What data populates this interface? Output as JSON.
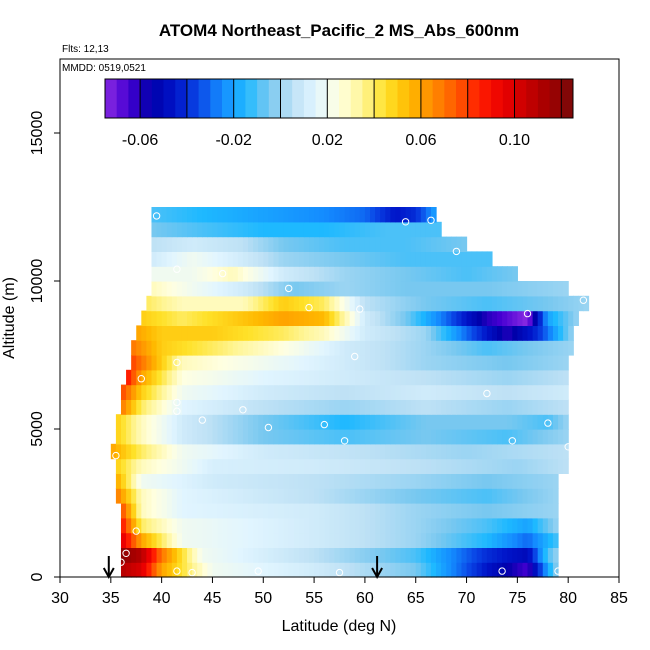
{
  "chart_data": {
    "type": "heatmap",
    "title": "ATOM4 Northeast_Pacific_2 MS_Abs_600nm",
    "subtitle_lines": [
      "Flts: 12,13",
      "MMDD: 0519,0521"
    ],
    "xlabel": "Latitude (deg N)",
    "ylabel": "Altitude (m)",
    "xlim": [
      30,
      85
    ],
    "ylim": [
      0,
      17500
    ],
    "x_ticks": [
      "30",
      "35",
      "40",
      "45",
      "50",
      "55",
      "60",
      "65",
      "70",
      "75",
      "80",
      "85"
    ],
    "y_ticks": [
      "0",
      "5000",
      "10000",
      "15000"
    ],
    "colorbar": {
      "range": [
        -0.075,
        0.125
      ],
      "tick_values": [
        -0.06,
        -0.02,
        0.02,
        0.06,
        0.1
      ],
      "tick_labels": [
        "-0.06",
        "-0.02",
        "0.02",
        "0.06",
        "0.10"
      ],
      "placement": "top-inside"
    },
    "altitude_layers": [
      {
        "alt": 250,
        "lat": [
          36,
          79
        ],
        "v": [
          [
            36,
            0.11
          ],
          [
            38,
            0.1
          ],
          [
            40,
            0.06
          ],
          [
            45,
            0.02
          ],
          [
            55,
            0.01
          ],
          [
            65,
            -0.005
          ],
          [
            72,
            -0.045
          ],
          [
            76,
            -0.065
          ],
          [
            78,
            -0.02
          ],
          [
            79,
            0.0
          ]
        ]
      },
      {
        "alt": 750,
        "lat": [
          36,
          79
        ],
        "v": [
          [
            36,
            0.12
          ],
          [
            38,
            0.11
          ],
          [
            40,
            0.07
          ],
          [
            44,
            0.02
          ],
          [
            55,
            0.005
          ],
          [
            65,
            -0.01
          ],
          [
            72,
            -0.04
          ],
          [
            76,
            -0.05
          ],
          [
            78,
            -0.01
          ],
          [
            79,
            0.0
          ]
        ]
      },
      {
        "alt": 1250,
        "lat": [
          36,
          79
        ],
        "v": [
          [
            36,
            0.1
          ],
          [
            38,
            0.06
          ],
          [
            42,
            0.02
          ],
          [
            55,
            0.01
          ],
          [
            65,
            0.0
          ],
          [
            72,
            -0.015
          ],
          [
            76,
            -0.03
          ],
          [
            79,
            -0.01
          ]
        ]
      },
      {
        "alt": 1750,
        "lat": [
          36,
          79
        ],
        "v": [
          [
            36,
            0.09
          ],
          [
            38,
            0.04
          ],
          [
            42,
            0.02
          ],
          [
            55,
            0.01
          ],
          [
            65,
            0.0
          ],
          [
            72,
            -0.01
          ],
          [
            76,
            -0.02
          ],
          [
            79,
            0.0
          ]
        ]
      },
      {
        "alt": 2250,
        "lat": [
          36,
          79
        ],
        "v": [
          [
            36,
            0.08
          ],
          [
            38,
            0.03
          ],
          [
            42,
            0.015
          ],
          [
            55,
            0.01
          ],
          [
            65,
            0.0
          ],
          [
            72,
            -0.005
          ],
          [
            79,
            0.0
          ]
        ]
      },
      {
        "alt": 2750,
        "lat": [
          35.5,
          79
        ],
        "v": [
          [
            35.5,
            0.07
          ],
          [
            38,
            0.03
          ],
          [
            42,
            0.015
          ],
          [
            55,
            0.005
          ],
          [
            65,
            -0.005
          ],
          [
            72,
            -0.01
          ],
          [
            79,
            0.0
          ]
        ]
      },
      {
        "alt": 3250,
        "lat": [
          35.5,
          79
        ],
        "v": [
          [
            35.5,
            0.06
          ],
          [
            38,
            0.02
          ],
          [
            45,
            0.01
          ],
          [
            55,
            0.005
          ],
          [
            65,
            0.0
          ],
          [
            72,
            -0.005
          ],
          [
            79,
            0.0
          ]
        ]
      },
      {
        "alt": 3750,
        "lat": [
          35.5,
          80
        ],
        "v": [
          [
            35.5,
            0.05
          ],
          [
            38,
            0.03
          ],
          [
            45,
            0.012
          ],
          [
            55,
            0.01
          ],
          [
            65,
            0.005
          ],
          [
            75,
            0.0
          ],
          [
            80,
            0.005
          ]
        ]
      },
      {
        "alt": 4250,
        "lat": [
          35,
          80
        ],
        "v": [
          [
            35,
            0.06
          ],
          [
            38,
            0.04
          ],
          [
            42,
            0.02
          ],
          [
            50,
            0.01
          ],
          [
            60,
            0.005
          ],
          [
            70,
            0.0
          ],
          [
            80,
            0.005
          ]
        ]
      },
      {
        "alt": 4750,
        "lat": [
          35.5,
          80
        ],
        "v": [
          [
            35.5,
            0.05
          ],
          [
            38,
            0.03
          ],
          [
            42,
            0.01
          ],
          [
            50,
            -0.005
          ],
          [
            58,
            -0.01
          ],
          [
            66,
            -0.005
          ],
          [
            74,
            -0.01
          ],
          [
            80,
            0.0
          ]
        ]
      },
      {
        "alt": 5250,
        "lat": [
          35.5,
          80
        ],
        "v": [
          [
            35.5,
            0.05
          ],
          [
            38,
            0.03
          ],
          [
            42,
            0.01
          ],
          [
            50,
            -0.005
          ],
          [
            58,
            -0.015
          ],
          [
            66,
            -0.005
          ],
          [
            74,
            -0.005
          ],
          [
            78,
            -0.01
          ],
          [
            80,
            0.0
          ]
        ]
      },
      {
        "alt": 5750,
        "lat": [
          36,
          80
        ],
        "v": [
          [
            36,
            0.07
          ],
          [
            38,
            0.04
          ],
          [
            42,
            0.015
          ],
          [
            50,
            0.005
          ],
          [
            58,
            0.0
          ],
          [
            66,
            0.005
          ],
          [
            74,
            0.0
          ],
          [
            80,
            0.005
          ]
        ]
      },
      {
        "alt": 6250,
        "lat": [
          36,
          80
        ],
        "v": [
          [
            36,
            0.08
          ],
          [
            38,
            0.05
          ],
          [
            42,
            0.02
          ],
          [
            50,
            0.01
          ],
          [
            58,
            0.005
          ],
          [
            66,
            0.01
          ],
          [
            74,
            0.005
          ],
          [
            80,
            0.01
          ]
        ]
      },
      {
        "alt": 6750,
        "lat": [
          36.5,
          80
        ],
        "v": [
          [
            36.5,
            0.09
          ],
          [
            38,
            0.06
          ],
          [
            42,
            0.025
          ],
          [
            50,
            0.015
          ],
          [
            58,
            0.01
          ],
          [
            66,
            0.005
          ],
          [
            74,
            0.0
          ],
          [
            80,
            0.005
          ]
        ]
      },
      {
        "alt": 7250,
        "lat": [
          37,
          80
        ],
        "v": [
          [
            37,
            0.08
          ],
          [
            39,
            0.06
          ],
          [
            42,
            0.03
          ],
          [
            50,
            0.02
          ],
          [
            58,
            0.01
          ],
          [
            66,
            0.0
          ],
          [
            74,
            -0.005
          ],
          [
            80,
            0.0
          ]
        ]
      },
      {
        "alt": 7750,
        "lat": [
          37,
          80.5
        ],
        "v": [
          [
            37,
            0.07
          ],
          [
            40,
            0.05
          ],
          [
            45,
            0.04
          ],
          [
            52,
            0.025
          ],
          [
            58,
            0.01
          ],
          [
            66,
            0.0
          ],
          [
            72,
            -0.01
          ],
          [
            76,
            -0.005
          ],
          [
            80.5,
            0.0
          ]
        ]
      },
      {
        "alt": 8250,
        "lat": [
          37.5,
          80.5
        ],
        "v": [
          [
            37.5,
            0.06
          ],
          [
            40,
            0.05
          ],
          [
            45,
            0.05
          ],
          [
            52,
            0.04
          ],
          [
            56,
            0.03
          ],
          [
            60,
            0.01
          ],
          [
            66,
            0.0
          ],
          [
            70,
            -0.03
          ],
          [
            74,
            -0.06
          ],
          [
            77,
            -0.04
          ],
          [
            80.5,
            0.0
          ]
        ]
      },
      {
        "alt": 8750,
        "lat": [
          38,
          81
        ],
        "v": [
          [
            38,
            0.05
          ],
          [
            42,
            0.04
          ],
          [
            47,
            0.05
          ],
          [
            52,
            0.06
          ],
          [
            56,
            0.055
          ],
          [
            60,
            0.01
          ],
          [
            64,
            -0.005
          ],
          [
            68,
            -0.03
          ],
          [
            72,
            -0.06
          ],
          [
            76,
            -0.075
          ],
          [
            78,
            -0.02
          ],
          [
            81,
            0.0
          ]
        ]
      },
      {
        "alt": 9250,
        "lat": [
          38.5,
          82
        ],
        "v": [
          [
            38.5,
            0.04
          ],
          [
            42,
            0.03
          ],
          [
            48,
            0.03
          ],
          [
            52,
            0.05
          ],
          [
            56,
            0.04
          ],
          [
            60,
            0.005
          ],
          [
            66,
            -0.005
          ],
          [
            72,
            -0.01
          ],
          [
            78,
            -0.005
          ],
          [
            82,
            0.0
          ]
        ]
      },
      {
        "alt": 9750,
        "lat": [
          39,
          80
        ],
        "v": [
          [
            39,
            0.03
          ],
          [
            43,
            0.02
          ],
          [
            48,
            0.01
          ],
          [
            53,
            -0.005
          ],
          [
            58,
            0.0
          ],
          [
            64,
            -0.005
          ],
          [
            72,
            -0.005
          ],
          [
            80,
            0.0
          ]
        ]
      },
      {
        "alt": 10250,
        "lat": [
          39,
          75
        ],
        "v": [
          [
            39,
            0.02
          ],
          [
            43,
            0.02
          ],
          [
            47,
            0.03
          ],
          [
            52,
            0.01
          ],
          [
            58,
            0.0
          ],
          [
            64,
            -0.005
          ],
          [
            70,
            -0.01
          ],
          [
            75,
            -0.005
          ]
        ]
      },
      {
        "alt": 10750,
        "lat": [
          39,
          72.5
        ],
        "v": [
          [
            39,
            0.01
          ],
          [
            43,
            0.02
          ],
          [
            48,
            0.01
          ],
          [
            52,
            0.0
          ],
          [
            58,
            -0.005
          ],
          [
            64,
            -0.01
          ],
          [
            72.5,
            -0.01
          ]
        ]
      },
      {
        "alt": 11250,
        "lat": [
          39,
          70
        ],
        "v": [
          [
            39,
            0.005
          ],
          [
            43,
            0.01
          ],
          [
            48,
            0.005
          ],
          [
            52,
            -0.005
          ],
          [
            58,
            -0.01
          ],
          [
            64,
            -0.01
          ],
          [
            70,
            -0.005
          ]
        ]
      },
      {
        "alt": 11750,
        "lat": [
          39,
          67.5
        ],
        "v": [
          [
            39,
            -0.005
          ],
          [
            44,
            -0.01
          ],
          [
            50,
            -0.015
          ],
          [
            56,
            -0.015
          ],
          [
            62,
            -0.01
          ],
          [
            67.5,
            -0.01
          ]
        ]
      },
      {
        "alt": 12250,
        "lat": [
          39,
          67
        ],
        "v": [
          [
            39,
            -0.01
          ],
          [
            44,
            -0.015
          ],
          [
            50,
            -0.02
          ],
          [
            56,
            -0.025
          ],
          [
            60,
            -0.03
          ],
          [
            63,
            -0.045
          ],
          [
            65,
            -0.04
          ],
          [
            67,
            -0.02
          ]
        ]
      }
    ],
    "profile_points": [
      [
        39.5,
        12200
      ],
      [
        64,
        12000
      ],
      [
        66.5,
        12050
      ],
      [
        69,
        11000
      ],
      [
        41.5,
        10400
      ],
      [
        46,
        10250
      ],
      [
        52.5,
        9750
      ],
      [
        54.5,
        9100
      ],
      [
        59.5,
        9050
      ],
      [
        76,
        8900
      ],
      [
        81.5,
        9350
      ],
      [
        41.5,
        7250
      ],
      [
        38,
        6700
      ],
      [
        59,
        7450
      ],
      [
        72,
        6200
      ],
      [
        41.5,
        5900
      ],
      [
        41.5,
        5600
      ],
      [
        48,
        5650
      ],
      [
        44,
        5300
      ],
      [
        50.5,
        5050
      ],
      [
        56,
        5150
      ],
      [
        58,
        4600
      ],
      [
        74.5,
        4600
      ],
      [
        78,
        5200
      ],
      [
        80,
        4400
      ],
      [
        35.5,
        4100
      ],
      [
        37.5,
        1550
      ],
      [
        36.5,
        800
      ],
      [
        36,
        500
      ],
      [
        41.5,
        200
      ],
      [
        43,
        150
      ],
      [
        49.5,
        200
      ],
      [
        57.5,
        150
      ],
      [
        73.5,
        200
      ],
      [
        79,
        200
      ]
    ],
    "arrows_lat": [
      34.8,
      61.2
    ]
  }
}
